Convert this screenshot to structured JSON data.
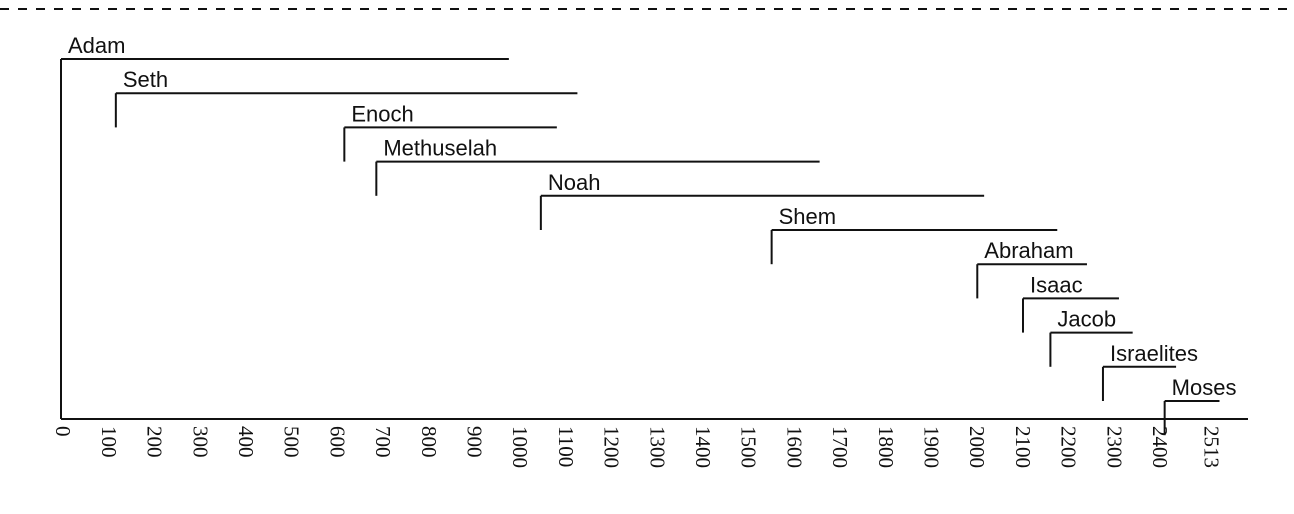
{
  "chart_data": {
    "type": "timeline",
    "x_ticks": [
      0,
      100,
      200,
      300,
      400,
      500,
      600,
      700,
      800,
      900,
      1000,
      1100,
      1200,
      1300,
      1400,
      1500,
      1600,
      1700,
      1800,
      1900,
      2000,
      2100,
      2200,
      2300,
      2400,
      2513
    ],
    "xlim": [
      0,
      2600
    ],
    "grid": false,
    "legend": "none",
    "persons": [
      {
        "name": "Adam",
        "start": 0,
        "end": 980
      },
      {
        "name": "Seth",
        "start": 120,
        "end": 1130
      },
      {
        "name": "Enoch",
        "start": 620,
        "end": 1085
      },
      {
        "name": "Methuselah",
        "start": 690,
        "end": 1660
      },
      {
        "name": "Noah",
        "start": 1050,
        "end": 2020
      },
      {
        "name": "Shem",
        "start": 1555,
        "end": 2180
      },
      {
        "name": "Abraham",
        "start": 2005,
        "end": 2245
      },
      {
        "name": "Isaac",
        "start": 2105,
        "end": 2315
      },
      {
        "name": "Jacob",
        "start": 2165,
        "end": 2345
      },
      {
        "name": "Israelites",
        "start": 2280,
        "end": 2440
      },
      {
        "name": "Moses",
        "start": 2415,
        "end": 2535
      }
    ]
  }
}
